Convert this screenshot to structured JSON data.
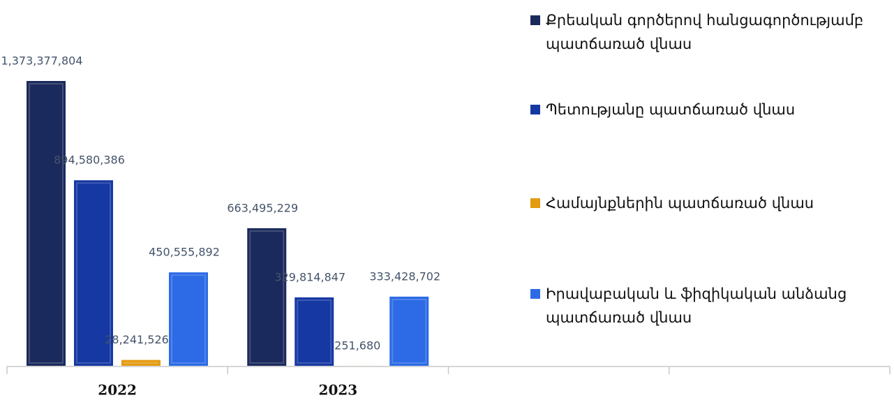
{
  "chart_data": {
    "type": "bar",
    "categories": [
      "2022",
      "2023",
      null,
      null
    ],
    "series": [
      {
        "name": "Քրեական գործերով հանցագործությամբ պատճառած վնաս",
        "color": "#1b2a5c",
        "values": [
          1373377804,
          663495229,
          null,
          null
        ],
        "value_labels": [
          "1,373,377,804",
          "663,495,229",
          null,
          null
        ]
      },
      {
        "name": "Պետությանը պատճառած վնաս",
        "color": "#1638a3",
        "values": [
          894580386,
          329814847,
          null,
          null
        ],
        "value_labels": [
          "894,580,386",
          "329,814,847",
          null,
          null
        ]
      },
      {
        "name": "Համայնքներին պատճառած վնաս",
        "color": "#e39b12",
        "values": [
          28241526,
          251680,
          null,
          null
        ],
        "value_labels": [
          "28,241,526",
          "251,680",
          null,
          null
        ]
      },
      {
        "name": "Իրավաբական և ֆիզիկական անձանց պատճառած վնաս",
        "color": "#2d6be6",
        "values": [
          450555892,
          333428702,
          null,
          null
        ],
        "value_labels": [
          "450,555,892",
          "333,428,702",
          null,
          null
        ]
      }
    ],
    "legend": "right"
  }
}
